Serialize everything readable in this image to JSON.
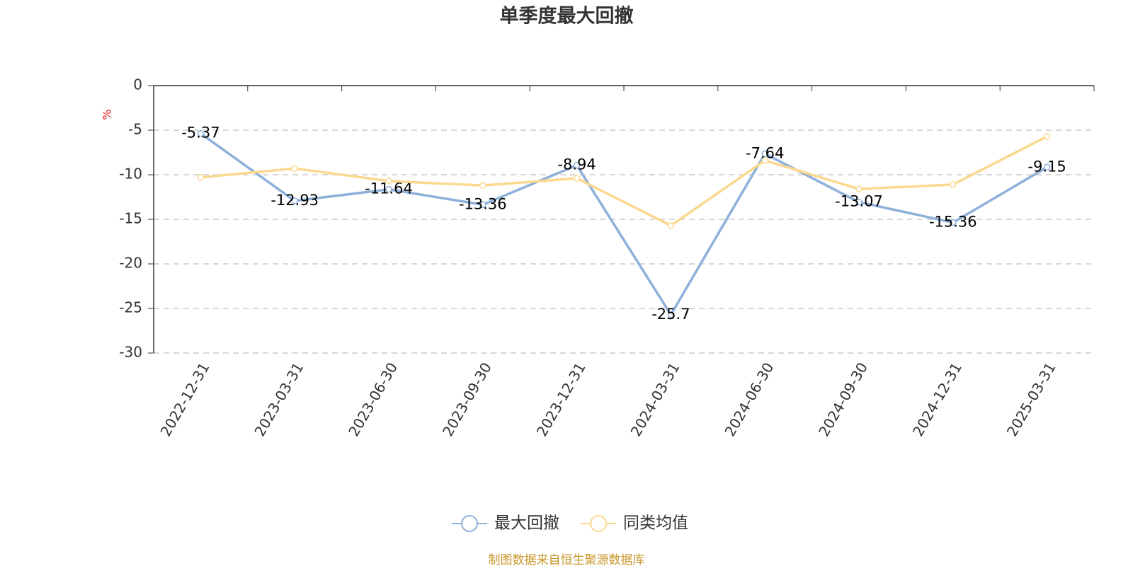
{
  "chart_data": {
    "type": "line",
    "title": "单季度最大回撤",
    "y_label": "%",
    "categories": [
      "2022-12-31",
      "2023-03-31",
      "2023-06-30",
      "2023-09-30",
      "2023-12-31",
      "2024-03-31",
      "2024-06-30",
      "2024-09-30",
      "2024-12-31",
      "2025-03-31"
    ],
    "series": [
      {
        "name": "最大回撤",
        "color": "#8eb0da",
        "values": [
          -5.37,
          -12.93,
          -11.64,
          -13.36,
          -8.94,
          -25.7,
          -7.64,
          -13.07,
          -15.36,
          -9.15
        ],
        "show_labels": true
      },
      {
        "name": "同类均值",
        "color": "#fbd88e",
        "values": [
          -10.3,
          -9.3,
          -10.7,
          -11.2,
          -10.4,
          -15.7,
          -8.4,
          -11.6,
          -11.1,
          -5.7
        ],
        "show_labels": false
      }
    ],
    "ylim": [
      -30,
      0
    ],
    "yticks": [
      0,
      -5,
      -10,
      -15,
      -20,
      -25,
      -30
    ],
    "grid": true,
    "source": "制图数据来自恒生聚源数据库"
  }
}
